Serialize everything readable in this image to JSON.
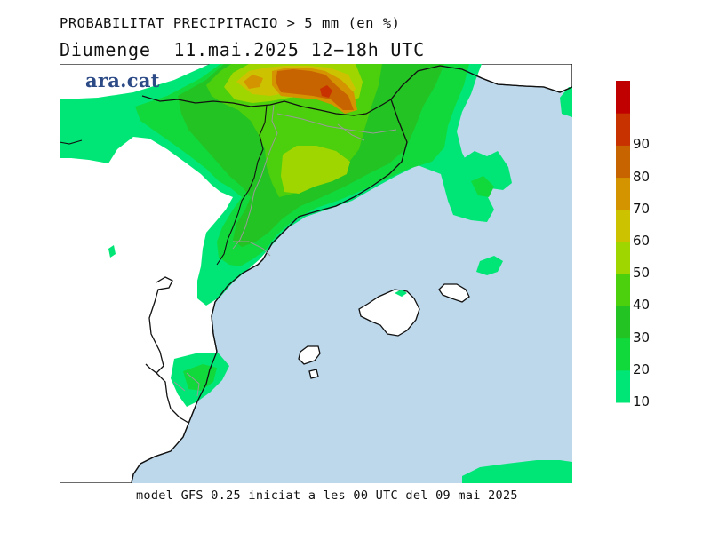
{
  "header": {
    "title": "PROBABILITAT PRECIPITACIO > 5 mm (en %)",
    "subtitle": "Diumenge  11.mai.2025 12−18h UTC"
  },
  "brand": {
    "label": "ara.cat",
    "color": "#2b4a86"
  },
  "footer": {
    "model_text": "model GFS 0.25 iniciat a les 00 UTC del 09 mai 2025"
  },
  "map": {
    "sea_color": "#bdd8eb",
    "land_color": "#ffffff"
  },
  "legend": {
    "levels": [
      {
        "value": "10",
        "color": "#00e676"
      },
      {
        "value": "20",
        "color": "#11d93c"
      },
      {
        "value": "30",
        "color": "#22c322"
      },
      {
        "value": "40",
        "color": "#4ccf0c"
      },
      {
        "value": "50",
        "color": "#a0d600"
      },
      {
        "value": "60",
        "color": "#ccc200"
      },
      {
        "value": "70",
        "color": "#d49400"
      },
      {
        "value": "80",
        "color": "#c86400"
      },
      {
        "value": "90",
        "color": "#c83200"
      },
      {
        "value": "",
        "color": "#c00000"
      }
    ]
  }
}
